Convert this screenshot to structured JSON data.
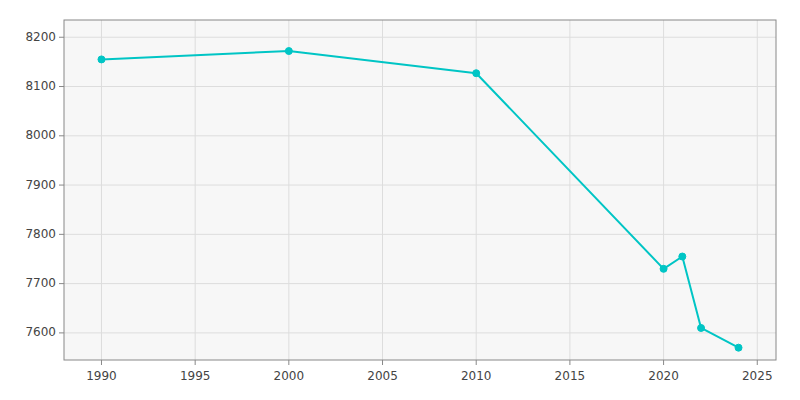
{
  "chart_data": {
    "type": "line",
    "x": [
      1990,
      2000,
      2010,
      2020,
      2021,
      2022,
      2024
    ],
    "values": [
      8155,
      8172,
      8127,
      7730,
      7755,
      7610,
      7570
    ],
    "color": "#00c5c5",
    "marker": "circle",
    "xlim": [
      1988,
      2026
    ],
    "ylim": [
      7545,
      8235
    ],
    "xticks": [
      1990,
      1995,
      2000,
      2005,
      2010,
      2015,
      2020,
      2025
    ],
    "yticks": [
      7600,
      7700,
      7800,
      7900,
      8000,
      8100,
      8200
    ],
    "grid": true
  }
}
